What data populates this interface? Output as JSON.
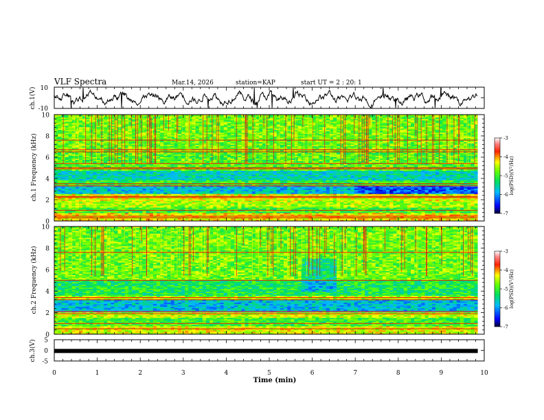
{
  "header": {
    "title": "VLF Spectra",
    "date": "Mar.14, 2026",
    "station": "station=KAP",
    "start": "start UT = 2 : 20: 1"
  },
  "chart_data": [
    {
      "name": "ch1-waveform",
      "type": "line",
      "ylabel": "ch.1(V)",
      "ylim": [
        -10,
        10
      ],
      "yticks": [
        "10",
        "-10"
      ],
      "xlim": [
        0,
        10
      ],
      "trace_end_min": 9.85
    },
    {
      "name": "ch1-spectrogram",
      "type": "heatmap",
      "ylabel": "ch.1 Frequency (kHz)",
      "ylim": [
        0,
        10
      ],
      "yticks": [
        "0",
        "2",
        "4",
        "6",
        "8",
        "10"
      ],
      "xlim": [
        0,
        10
      ],
      "data_end_min": 9.85,
      "bands": [
        {
          "from": 0.0,
          "to": 0.8,
          "level": -4.3
        },
        {
          "from": 0.8,
          "to": 1.3,
          "level": -5.0
        },
        {
          "from": 1.3,
          "to": 1.9,
          "level": -4.6
        },
        {
          "from": 1.9,
          "to": 2.6,
          "level": -4.4
        },
        {
          "from": 2.6,
          "to": 3.3,
          "level": -5.8
        },
        {
          "from": 3.3,
          "to": 3.8,
          "level": -5.1
        },
        {
          "from": 3.8,
          "to": 4.8,
          "level": -5.6
        },
        {
          "from": 4.8,
          "to": 6.5,
          "level": -4.9
        },
        {
          "from": 6.5,
          "to": 10.0,
          "level": -4.8
        }
      ],
      "lines_khz": [
        0.3,
        0.45,
        1.0,
        2.2,
        2.3,
        3.3,
        3.5,
        4.9,
        5.0,
        5.4,
        6.5,
        6.7,
        7.6
      ],
      "colorbar": {
        "label": "log(PSD)(V²/Hz)",
        "range": [
          -7,
          -3
        ],
        "ticks": [
          "-3",
          "-4",
          "-5",
          "-6",
          "-7"
        ]
      }
    },
    {
      "name": "ch2-spectrogram",
      "type": "heatmap",
      "ylabel": "ch.2 Frequency (kHz)",
      "ylim": [
        0,
        10
      ],
      "yticks": [
        "0",
        "2",
        "4",
        "6",
        "8",
        "10"
      ],
      "xlim": [
        0,
        10
      ],
      "data_end_min": 9.85,
      "bands": [
        {
          "from": 0.0,
          "to": 0.8,
          "level": -4.4
        },
        {
          "from": 0.8,
          "to": 1.6,
          "level": -5.0
        },
        {
          "from": 1.6,
          "to": 2.1,
          "level": -4.5
        },
        {
          "from": 2.1,
          "to": 3.2,
          "level": -5.8
        },
        {
          "from": 3.2,
          "to": 3.6,
          "level": -4.6
        },
        {
          "from": 3.6,
          "to": 5.0,
          "level": -5.2
        },
        {
          "from": 5.0,
          "to": 10.0,
          "level": -4.8
        }
      ],
      "lines_khz": [
        0.5,
        1.0,
        1.9,
        2.1,
        3.2,
        3.4,
        5.0,
        7.6
      ],
      "colorbar": {
        "label": "log(PSD)(V²/Hz)",
        "range": [
          -7,
          -3
        ],
        "ticks": [
          "-3",
          "-4",
          "-5",
          "-6",
          "-7"
        ]
      }
    },
    {
      "name": "ch3-waveform",
      "type": "line",
      "ylabel": "ch.3(V)",
      "ylim": [
        -5,
        5
      ],
      "yticks": [
        "5",
        "0",
        "-5"
      ],
      "xlim": [
        0,
        10
      ],
      "level_v": -0.3,
      "trace_end_min": 9.85
    }
  ],
  "xaxis": {
    "label": "Time (min)",
    "ticks": [
      "0",
      "1",
      "2",
      "3",
      "4",
      "5",
      "6",
      "7",
      "8",
      "9",
      "10"
    ]
  },
  "colors": {
    "axis": "#000000",
    "trace": "#000000"
  }
}
